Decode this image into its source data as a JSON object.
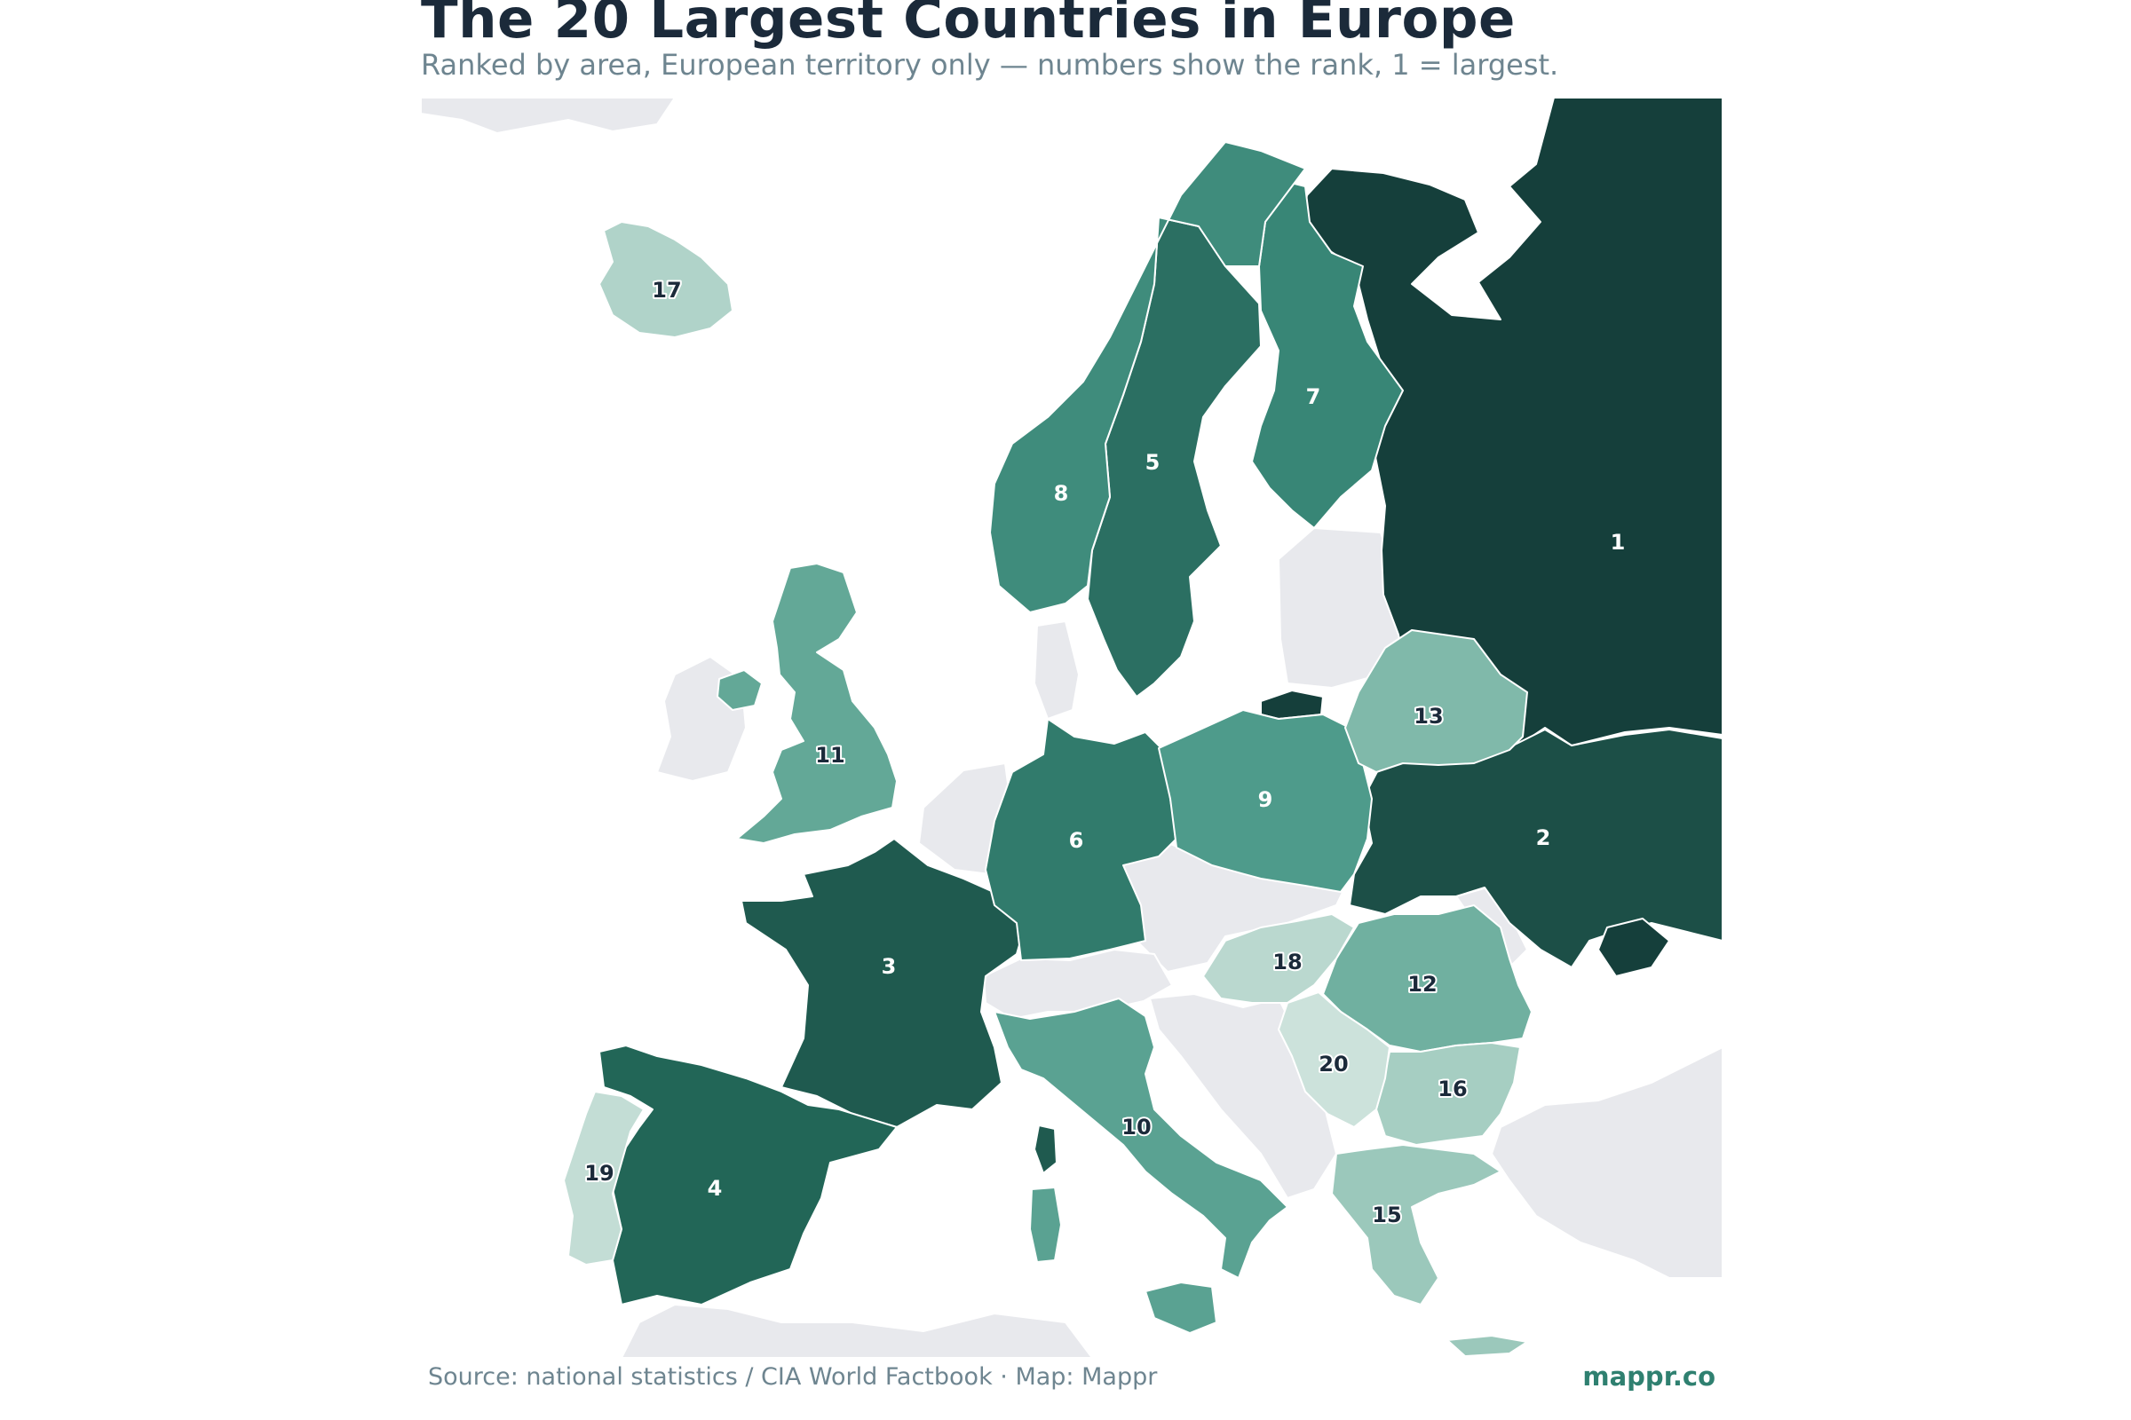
{
  "title": "The 20 Largest Countries in Europe",
  "subtitle": "Ranked by area, European territory only — numbers show the rank, 1 = largest.",
  "source": "Source: national statistics / CIA World Factbook · Map: Mappr",
  "brand": "mappr.co",
  "colors": {
    "background": "#ffffff",
    "land_other": "#e8e9ed",
    "border": "#ffffff",
    "title": "#1b2a3a",
    "subtitle": "#6e8590",
    "brand": "#2f8070",
    "rank_scale": [
      "#153f3b",
      "#1c4f47",
      "#1f5a4f",
      "#226657",
      "#2b6f62",
      "#317b6c",
      "#388676",
      "#3f8c7c",
      "#4e9b8b",
      "#5aa292",
      "#63a897",
      "#70b0a0",
      "#80b9aa",
      "#8ec1b3",
      "#9bc8bb",
      "#a6cec2",
      "#b0d3c9",
      "#bad8cf",
      "#c3ddd5",
      "#cce2db"
    ]
  },
  "ranks": [
    {
      "rank": "1",
      "country": "Russia"
    },
    {
      "rank": "2",
      "country": "Ukraine"
    },
    {
      "rank": "3",
      "country": "France"
    },
    {
      "rank": "4",
      "country": "Spain"
    },
    {
      "rank": "5",
      "country": "Sweden"
    },
    {
      "rank": "6",
      "country": "Germany"
    },
    {
      "rank": "7",
      "country": "Finland"
    },
    {
      "rank": "8",
      "country": "Norway"
    },
    {
      "rank": "9",
      "country": "Poland"
    },
    {
      "rank": "10",
      "country": "Italy"
    },
    {
      "rank": "11",
      "country": "United Kingdom"
    },
    {
      "rank": "12",
      "country": "Romania"
    },
    {
      "rank": "13",
      "country": "Belarus"
    },
    {
      "rank": "15",
      "country": "Greece"
    },
    {
      "rank": "16",
      "country": "Bulgaria"
    },
    {
      "rank": "17",
      "country": "Iceland"
    },
    {
      "rank": "18",
      "country": "Hungary"
    },
    {
      "rank": "19",
      "country": "Portugal"
    },
    {
      "rank": "20",
      "country": "Serbia"
    }
  ]
}
